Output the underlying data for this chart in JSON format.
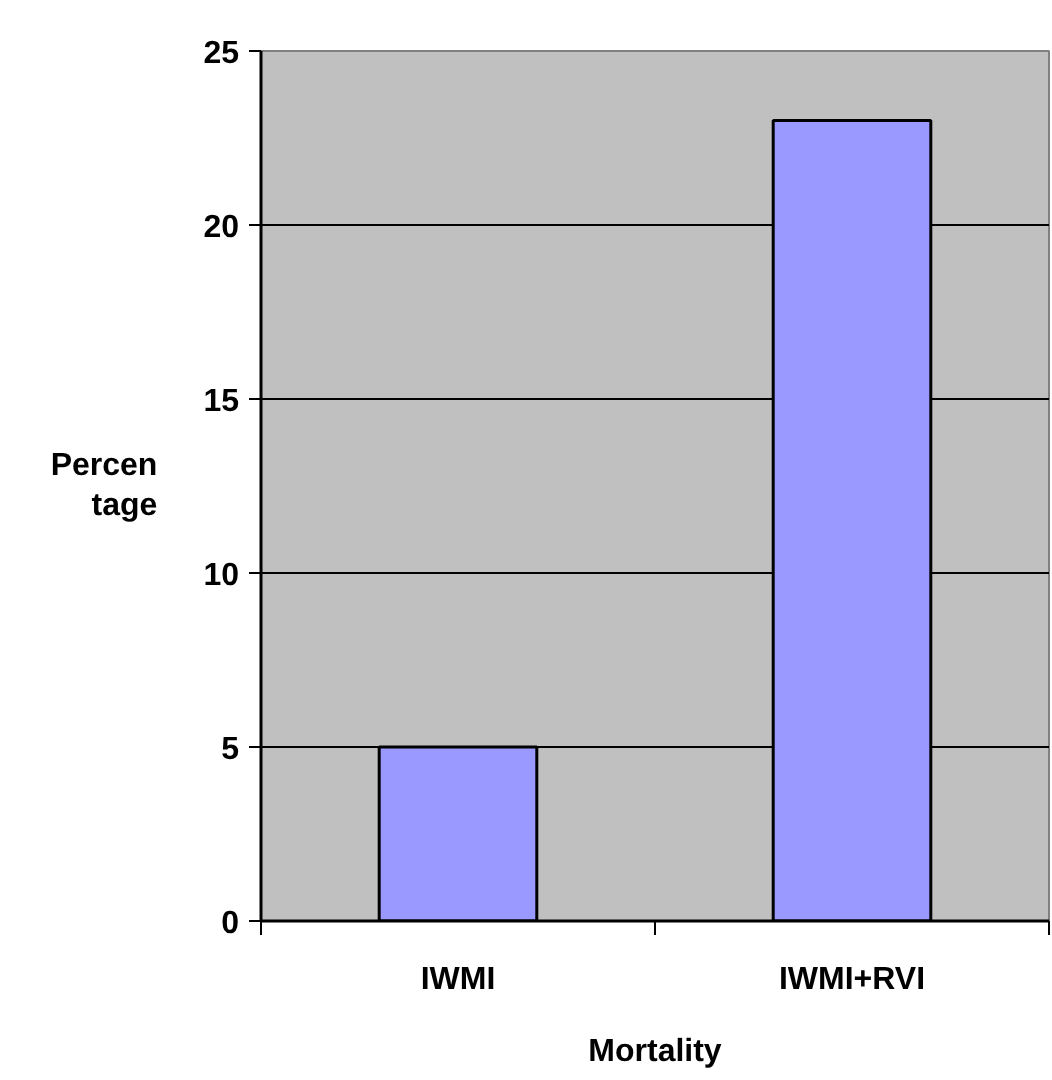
{
  "chart_data": {
    "type": "bar",
    "categories": [
      "IWMI",
      "IWMI+RVI"
    ],
    "values": [
      5,
      23
    ],
    "color": "#9999ff",
    "xlabel": "Mortality",
    "ylabel": "Percen\ntage",
    "ylim": [
      0,
      25
    ],
    "yticks": [
      0,
      5,
      10,
      15,
      20,
      25
    ],
    "grid": "y"
  }
}
